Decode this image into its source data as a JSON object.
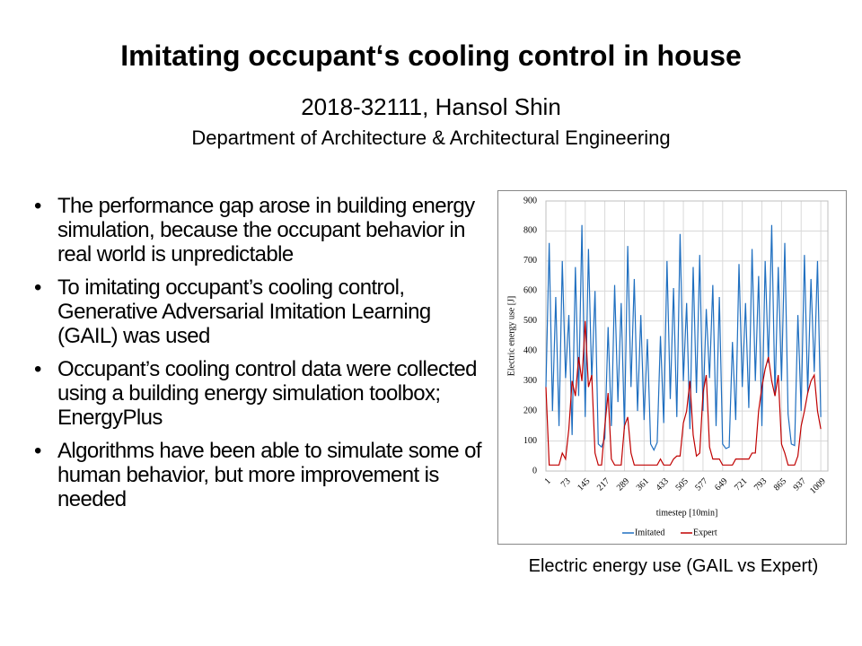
{
  "header": {
    "title": "Imitating occupant‘s cooling control in house",
    "author": "2018-32111, Hansol Shin",
    "department": "Department of Architecture & Architectural Engineering"
  },
  "bullets": [
    "The performance gap arose in building energy simulation, because the occupant behavior in real world is unpredictable",
    "To imitating occupant’s cooling control, Generative Adversarial Imitation Learning (GAIL) was used",
    "Occupant’s cooling control data were collected using a building energy simulation toolbox; EnergyPlus",
    "Algorithms have been able to simulate some of human behavior, but more improvement is needed"
  ],
  "caption": "Electric energy use (GAIL vs Expert)",
  "chart_data": {
    "type": "line",
    "x_label": "timestep [10min]",
    "y_label": "Electric energy use [J]",
    "x": [
      1,
      13,
      25,
      37,
      49,
      61,
      73,
      85,
      97,
      109,
      121,
      133,
      145,
      157,
      169,
      181,
      193,
      205,
      217,
      229,
      241,
      253,
      265,
      277,
      289,
      301,
      313,
      325,
      337,
      349,
      361,
      373,
      385,
      397,
      409,
      421,
      433,
      445,
      457,
      469,
      481,
      493,
      505,
      517,
      529,
      541,
      553,
      565,
      577,
      589,
      601,
      613,
      625,
      637,
      649,
      661,
      673,
      685,
      697,
      709,
      721,
      733,
      745,
      757,
      769,
      781,
      793,
      805,
      817,
      829,
      841,
      853,
      865,
      877,
      889,
      901,
      913,
      925,
      937,
      949,
      961,
      973,
      985,
      997,
      1009
    ],
    "series": [
      {
        "name": "Imitated",
        "color": "#1f6fc0",
        "values": [
          280,
          760,
          200,
          580,
          150,
          700,
          310,
          520,
          120,
          680,
          250,
          820,
          180,
          740,
          300,
          600,
          90,
          80,
          110,
          480,
          150,
          620,
          230,
          560,
          140,
          750,
          280,
          640,
          200,
          520,
          170,
          440,
          90,
          70,
          95,
          450,
          160,
          700,
          240,
          610,
          180,
          790,
          300,
          560,
          140,
          680,
          260,
          720,
          200,
          540,
          310,
          620,
          150,
          580,
          90,
          75,
          80,
          430,
          170,
          690,
          280,
          560,
          210,
          740,
          300,
          650,
          150,
          700,
          360,
          820,
          250,
          680,
          300,
          760,
          190,
          90,
          85,
          520,
          200,
          720,
          260,
          640,
          330,
          700,
          180
        ]
      },
      {
        "name": "Expert",
        "color": "#c00000",
        "values": [
          280,
          20,
          20,
          20,
          20,
          60,
          40,
          140,
          300,
          250,
          380,
          300,
          500,
          280,
          320,
          60,
          20,
          20,
          150,
          260,
          40,
          20,
          20,
          20,
          150,
          180,
          60,
          20,
          20,
          20,
          20,
          20,
          20,
          20,
          20,
          40,
          20,
          20,
          20,
          40,
          50,
          50,
          160,
          200,
          300,
          120,
          50,
          60,
          260,
          320,
          80,
          40,
          40,
          40,
          20,
          20,
          20,
          20,
          40,
          40,
          40,
          40,
          40,
          60,
          60,
          200,
          280,
          340,
          380,
          300,
          250,
          320,
          90,
          60,
          20,
          20,
          20,
          50,
          150,
          200,
          260,
          300,
          320,
          200,
          140
        ]
      }
    ],
    "xlim": [
      1,
      1035
    ],
    "xticks": [
      1,
      73,
      145,
      217,
      289,
      361,
      433,
      505,
      577,
      649,
      721,
      793,
      865,
      937,
      1009
    ],
    "ylim": [
      0,
      900
    ],
    "yticks": [
      0,
      100,
      200,
      300,
      400,
      500,
      600,
      700,
      800,
      900
    ],
    "grid": true
  }
}
